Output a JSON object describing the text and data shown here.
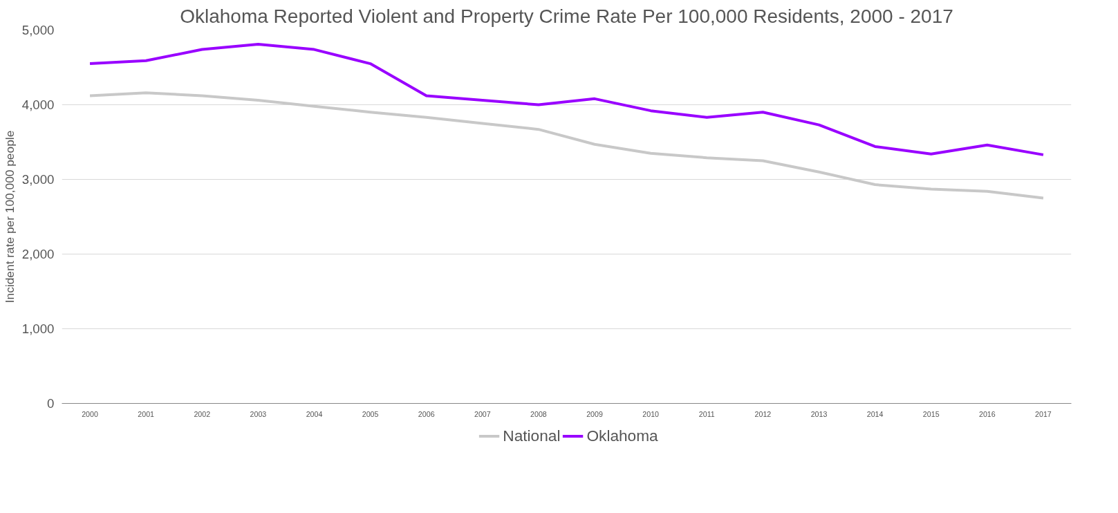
{
  "chart_data": {
    "type": "line",
    "title": "Oklahoma Reported Violent and Property Crime Rate Per 100,000 Residents, 2000 - 2017",
    "ylabel": "Incident rate per 100,000 people",
    "categories": [
      "2000",
      "2001",
      "2002",
      "2003",
      "2004",
      "2005",
      "2006",
      "2007",
      "2008",
      "2009",
      "2010",
      "2011",
      "2012",
      "2013",
      "2014",
      "2015",
      "2016",
      "2017"
    ],
    "series": [
      {
        "name": "National",
        "color": "#c8c8c8",
        "values": [
          4120,
          4160,
          4120,
          4060,
          3980,
          3900,
          3830,
          3750,
          3670,
          3470,
          3350,
          3290,
          3250,
          3100,
          2930,
          2870,
          2840,
          2750
        ]
      },
      {
        "name": "Oklahoma",
        "color": "#9900ff",
        "values": [
          4550,
          4590,
          4740,
          4810,
          4740,
          4550,
          4120,
          4060,
          4000,
          4080,
          3920,
          3830,
          3900,
          3730,
          3440,
          3340,
          3460,
          3330
        ]
      }
    ],
    "ylim": [
      0,
      5000
    ],
    "yticks": [
      {
        "value": 0,
        "label": "0"
      },
      {
        "value": 1000,
        "label": "1,000"
      },
      {
        "value": 2000,
        "label": "2,000"
      },
      {
        "value": 3000,
        "label": "3,000"
      },
      {
        "value": 4000,
        "label": "4,000"
      },
      {
        "value": 5000,
        "label": "5,000"
      }
    ],
    "grid": "y",
    "legend": "bottom",
    "marker": "none",
    "line_style": "solid"
  }
}
